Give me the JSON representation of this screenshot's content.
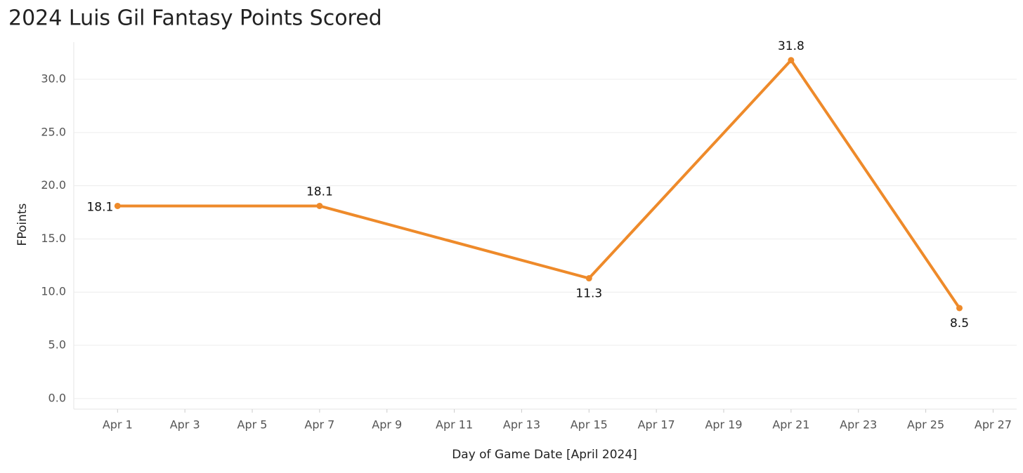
{
  "chart_data": {
    "type": "line",
    "title": "2024 Luis Gil Fantasy Points Scored",
    "x_label": "Day of Game Date [April 2024]",
    "y_label": "FPoints",
    "x": [
      1,
      7,
      15,
      21,
      26
    ],
    "series": [
      {
        "name": "FPoints",
        "color": "#ee8a2a",
        "values": [
          18.1,
          18.1,
          11.3,
          31.8,
          8.5
        ]
      }
    ],
    "xlim": [
      -0.3,
      27.7
    ],
    "xticks": [
      {
        "value": 1,
        "label": "Apr 1"
      },
      {
        "value": 3,
        "label": "Apr 3"
      },
      {
        "value": 5,
        "label": "Apr 5"
      },
      {
        "value": 7,
        "label": "Apr 7"
      },
      {
        "value": 9,
        "label": "Apr 9"
      },
      {
        "value": 11,
        "label": "Apr 11"
      },
      {
        "value": 13,
        "label": "Apr 13"
      },
      {
        "value": 15,
        "label": "Apr 15"
      },
      {
        "value": 17,
        "label": "Apr 17"
      },
      {
        "value": 19,
        "label": "Apr 19"
      },
      {
        "value": 21,
        "label": "Apr 21"
      },
      {
        "value": 23,
        "label": "Apr 23"
      },
      {
        "value": 25,
        "label": "Apr 25"
      },
      {
        "value": 27,
        "label": "Apr 27"
      }
    ],
    "ylim": [
      -1,
      33.5
    ],
    "yticks": [
      {
        "value": 0,
        "label": "0.0"
      },
      {
        "value": 5,
        "label": "5.0"
      },
      {
        "value": 10,
        "label": "10.0"
      },
      {
        "value": 15,
        "label": "15.0"
      },
      {
        "value": 20,
        "label": "20.0"
      },
      {
        "value": 25,
        "label": "25.0"
      },
      {
        "value": 30,
        "label": "30.0"
      }
    ],
    "grid": true
  }
}
